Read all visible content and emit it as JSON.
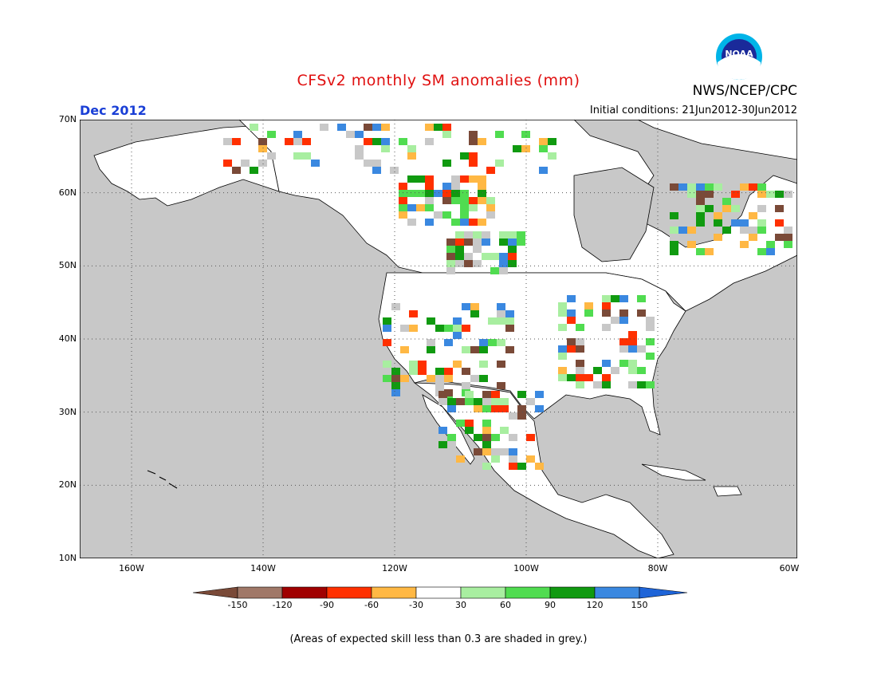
{
  "header": {
    "title": "CFSv2 monthly SM anomalies (mm)",
    "month": "Dec 2012",
    "initial_conditions": "Initial conditions: 21Jun2012-30Jun2012",
    "agency": "NWS/NCEP/CPC",
    "logo_text": "NOAA"
  },
  "axes": {
    "lat_labels": [
      "70N",
      "60N",
      "50N",
      "40N",
      "30N",
      "20N",
      "10N"
    ],
    "lon_labels": [
      "160W",
      "140W",
      "120W",
      "100W",
      "80W",
      "60W"
    ]
  },
  "legend": {
    "bins": [
      {
        "color": "#7a4a38"
      },
      {
        "color": "#a07868"
      },
      {
        "color": "#a00000"
      },
      {
        "color": "#ff3000"
      },
      {
        "color": "#ffb844"
      },
      {
        "color": "#ffffff"
      },
      {
        "color": "#a8ee a0"
      },
      {
        "color": "#50dc50"
      },
      {
        "color": "#109a10"
      },
      {
        "color": "#3a88e0"
      },
      {
        "color": "#1e64d8"
      }
    ],
    "tick_labels": [
      "-150",
      "-120",
      "-90",
      "-60",
      "-30",
      "30",
      "60",
      "90",
      "120",
      "150"
    ]
  },
  "colors": {
    "ocean": "#c8c8c8",
    "skill_grey": "#c8c8c8",
    "land_white": "#ffffff",
    "title_red": "#e01010",
    "month_blue": "#1a3fd6"
  },
  "footnote": "(Areas of expected skill less than 0.3 are shaded in grey.)"
}
